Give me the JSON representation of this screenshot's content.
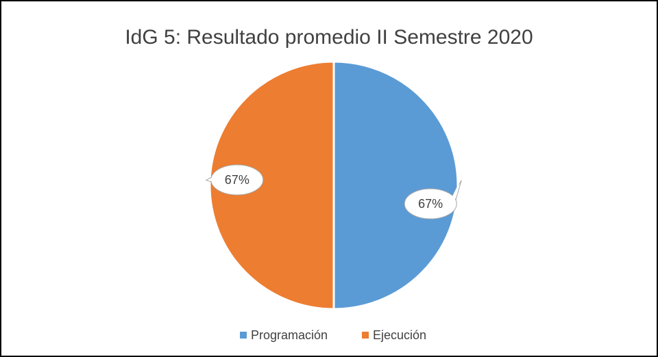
{
  "chart_data": {
    "type": "pie",
    "title": "IdG 5: Resultado promedio II Semestre 2020",
    "categories": [
      "Programación",
      "Ejecución"
    ],
    "values": [
      67,
      67
    ],
    "value_labels": [
      "67%",
      "67%"
    ],
    "colors": [
      "#5b9bd5",
      "#ed7d31"
    ],
    "legend": "bottom"
  }
}
